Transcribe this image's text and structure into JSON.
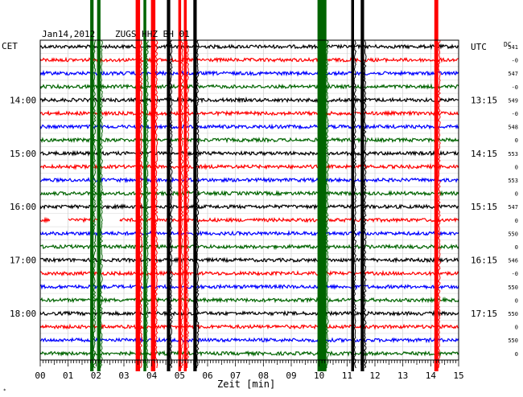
{
  "header": {
    "date": "Jan14,2012",
    "station": "ZUGS HHZ BH 01",
    "left_tz": "CET",
    "right_tz": "UTC",
    "dc_label": "DC"
  },
  "chart_data": {
    "type": "line",
    "title": "Jan14,2012  ZUGS HHZ BH 01",
    "xlabel": "Zeit [min]",
    "xlim": [
      0,
      15
    ],
    "x_ticks": [
      "00",
      "01",
      "02",
      "03",
      "04",
      "05",
      "06",
      "07",
      "08",
      "09",
      "10",
      "11",
      "12",
      "13",
      "14",
      "15"
    ],
    "grid": true,
    "trace_colors": [
      "#000000",
      "#ff0000",
      "#0000ff",
      "#006400"
    ],
    "trace_count": 24,
    "left_time_labels": [
      {
        "trace": 4,
        "label": "14:00"
      },
      {
        "trace": 8,
        "label": "15:00"
      },
      {
        "trace": 12,
        "label": "16:00"
      },
      {
        "trace": 16,
        "label": "17:00"
      },
      {
        "trace": 20,
        "label": "18:00"
      }
    ],
    "right_time_labels": [
      {
        "trace": 0,
        "label": "UTC"
      },
      {
        "trace": 4,
        "label": "13:15"
      },
      {
        "trace": 8,
        "label": "14:15"
      },
      {
        "trace": 12,
        "label": "15:15"
      },
      {
        "trace": 16,
        "label": "16:15"
      },
      {
        "trace": 20,
        "label": "17:15"
      }
    ],
    "dc_offsets": [
      "541",
      "-0",
      "547",
      "-0",
      "549",
      "-0",
      "548",
      "0",
      "553",
      "0",
      "553",
      "0",
      "547",
      "0",
      "550",
      "0",
      "546",
      "-0",
      "550",
      "0",
      "550",
      "0",
      "550",
      "0"
    ],
    "events": [
      {
        "minute": 1.85,
        "color": "#006400",
        "width_min": 0.12
      },
      {
        "minute": 2.1,
        "color": "#006400",
        "width_min": 0.12
      },
      {
        "minute": 3.5,
        "color": "#ff0000",
        "width_min": 0.16
      },
      {
        "minute": 3.75,
        "color": "#006400",
        "width_min": 0.1
      },
      {
        "minute": 4.05,
        "color": "#ff0000",
        "width_min": 0.16
      },
      {
        "minute": 4.6,
        "color": "#000000",
        "width_min": 0.12
      },
      {
        "minute": 5.0,
        "color": "#ff0000",
        "width_min": 0.1
      },
      {
        "minute": 5.2,
        "color": "#ff0000",
        "width_min": 0.1
      },
      {
        "minute": 5.55,
        "color": "#000000",
        "width_min": 0.12
      },
      {
        "minute": 10.1,
        "color": "#006400",
        "width_min": 0.32
      },
      {
        "minute": 11.2,
        "color": "#000000",
        "width_min": 0.1
      },
      {
        "minute": 11.55,
        "color": "#000000",
        "width_min": 0.12
      },
      {
        "minute": 14.2,
        "color": "#ff0000",
        "width_min": 0.14
      }
    ],
    "gaps": [
      {
        "trace": 13,
        "from": 0.35,
        "to": 1.0
      },
      {
        "trace": 13,
        "from": 2.05,
        "to": 2.85
      }
    ]
  }
}
